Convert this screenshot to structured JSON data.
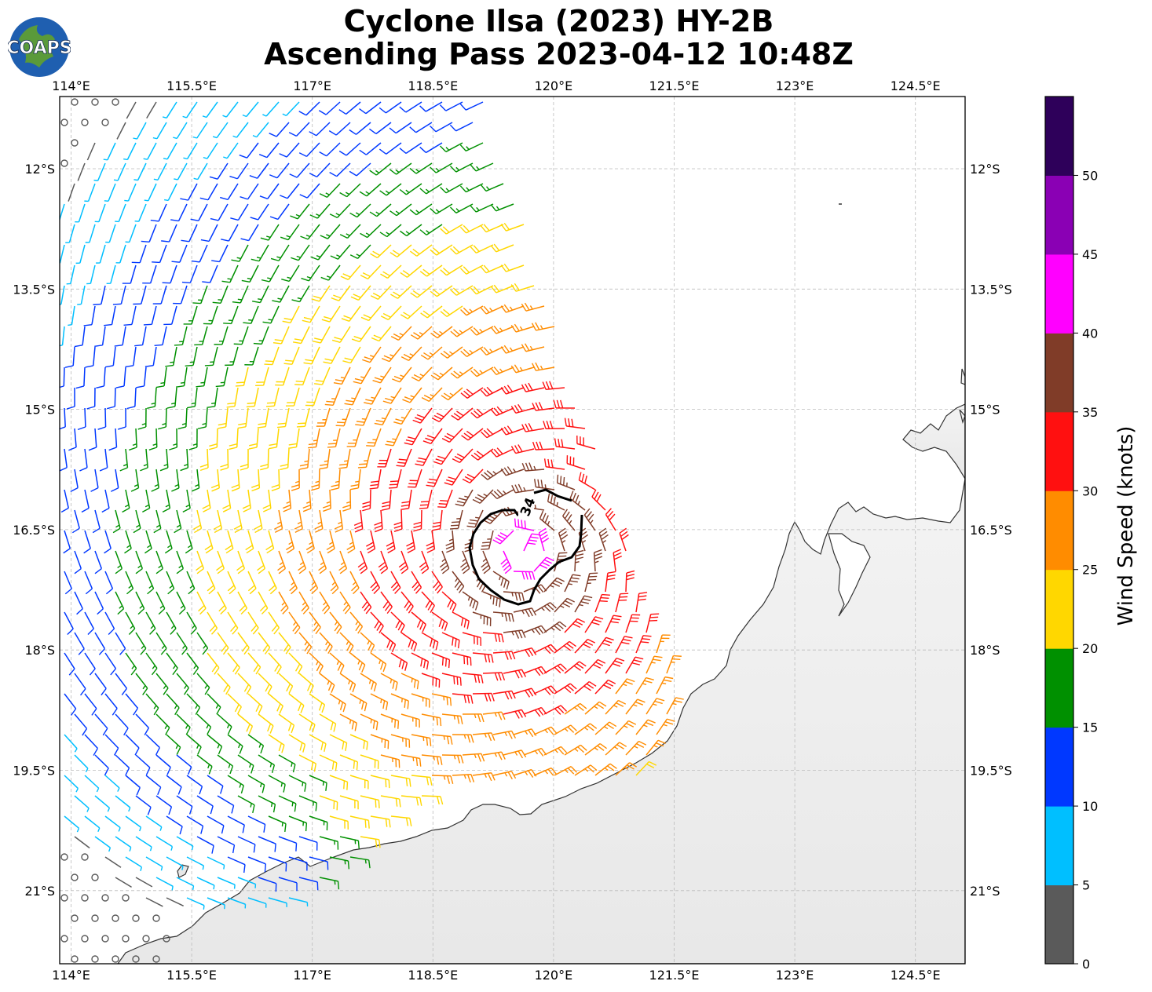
{
  "title_line1": "Cyclone Ilsa (2023) HY-2B",
  "title_line2": "Ascending Pass 2023-04-12 10:48Z",
  "logo_text": "COAPS",
  "lon_ticks": [
    "114°E",
    "115.5°E",
    "117°E",
    "118.5°E",
    "120°E",
    "121.5°E",
    "123°E",
    "124.5°E"
  ],
  "lat_ticks": [
    "12°S",
    "13.5°S",
    "15°S",
    "16.5°S",
    "18°S",
    "19.5°S",
    "21°S"
  ],
  "contour_label": "34",
  "colorbar": {
    "label": "Wind Speed (knots)",
    "ticks": [
      "0",
      "5",
      "10",
      "15",
      "20",
      "25",
      "30",
      "35",
      "40",
      "45",
      "50"
    ],
    "colors": [
      "#5a5a5a",
      "#00bfff",
      "#0038ff",
      "#009000",
      "#ffd700",
      "#ff8c00",
      "#ff1010",
      "#803c28",
      "#ff00ff",
      "#8a00b4",
      "#2e005a"
    ]
  }
}
